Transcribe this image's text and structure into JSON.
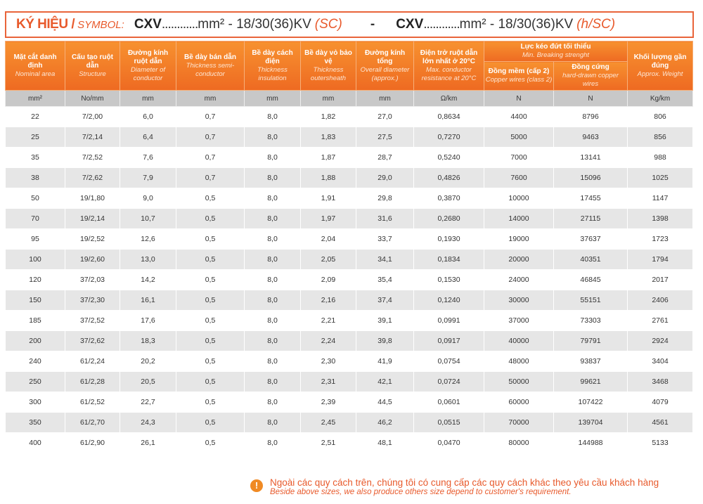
{
  "symbol": {
    "label_vi": "KÝ HIỆU /",
    "label_en": "SYMBOL:",
    "code1": "CXV",
    "dots": "............",
    "spec": "mm² - 18/30(36)KV",
    "suffix1": "(SC)",
    "separator": "-",
    "code2": "CXV",
    "suffix2": "(h/SC)"
  },
  "headers": [
    {
      "vi": "Mặt cắt danh định",
      "en": "Nominal area",
      "unit": "mm²"
    },
    {
      "vi": "Cấu tạo ruột dẫn",
      "en": "Structure",
      "unit": "No/mm"
    },
    {
      "vi": "Đường kính ruột dẫn",
      "en": "Diameter of conductor",
      "unit": "mm"
    },
    {
      "vi": "Bề dày bán dẫn",
      "en": "Thickness semi-conductor",
      "unit": "mm"
    },
    {
      "vi": "Bề dày cách điện",
      "en": "Thickness insulation",
      "unit": "mm"
    },
    {
      "vi": "Bề dày vỏ bảo vệ",
      "en": "Thickness outersheath",
      "unit": "mm"
    },
    {
      "vi": "Đường kính tổng",
      "en": "Overall diameter (approx.)",
      "unit": "mm"
    },
    {
      "vi": "Điện trở ruột dẫn lớn nhất ở 20°C",
      "en": "Max. conductor resistance at 20°C",
      "unit": "Ω/km"
    },
    {
      "vi": "Đồng mềm (cấp 2)",
      "en": "Copper wires (class 2)",
      "unit": "N"
    },
    {
      "vi": "Đồng cứng",
      "en": "hard-drawn copper wires",
      "unit": "N"
    },
    {
      "vi": "Khối lượng gần đúng",
      "en": "Approx. Weight",
      "unit": "Kg/km"
    }
  ],
  "group_header": {
    "vi": "Lực kéo đứt tối thiểu",
    "en": "Min. Breaking strenght"
  },
  "rows": [
    [
      "22",
      "7/2,00",
      "6,0",
      "0,7",
      "8,0",
      "1,82",
      "27,0",
      "0,8634",
      "4400",
      "8796",
      "806"
    ],
    [
      "25",
      "7/2,14",
      "6,4",
      "0,7",
      "8,0",
      "1,83",
      "27,5",
      "0,7270",
      "5000",
      "9463",
      "856"
    ],
    [
      "35",
      "7/2,52",
      "7,6",
      "0,7",
      "8,0",
      "1,87",
      "28,7",
      "0,5240",
      "7000",
      "13141",
      "988"
    ],
    [
      "38",
      "7/2,62",
      "7,9",
      "0,7",
      "8,0",
      "1,88",
      "29,0",
      "0,4826",
      "7600",
      "15096",
      "1025"
    ],
    [
      "50",
      "19/1,80",
      "9,0",
      "0,5",
      "8,0",
      "1,91",
      "29,8",
      "0,3870",
      "10000",
      "17455",
      "1147"
    ],
    [
      "70",
      "19/2,14",
      "10,7",
      "0,5",
      "8,0",
      "1,97",
      "31,6",
      "0,2680",
      "14000",
      "27115",
      "1398"
    ],
    [
      "95",
      "19/2,52",
      "12,6",
      "0,5",
      "8,0",
      "2,04",
      "33,7",
      "0,1930",
      "19000",
      "37637",
      "1723"
    ],
    [
      "100",
      "19/2,60",
      "13,0",
      "0,5",
      "8,0",
      "2,05",
      "34,1",
      "0,1834",
      "20000",
      "40351",
      "1794"
    ],
    [
      "120",
      "37/2,03",
      "14,2",
      "0,5",
      "8,0",
      "2,09",
      "35,4",
      "0,1530",
      "24000",
      "46845",
      "2017"
    ],
    [
      "150",
      "37/2,30",
      "16,1",
      "0,5",
      "8,0",
      "2,16",
      "37,4",
      "0,1240",
      "30000",
      "55151",
      "2406"
    ],
    [
      "185",
      "37/2,52",
      "17,6",
      "0,5",
      "8,0",
      "2,21",
      "39,1",
      "0,0991",
      "37000",
      "73303",
      "2761"
    ],
    [
      "200",
      "37/2,62",
      "18,3",
      "0,5",
      "8,0",
      "2,24",
      "39,8",
      "0,0917",
      "40000",
      "79791",
      "2924"
    ],
    [
      "240",
      "61/2,24",
      "20,2",
      "0,5",
      "8,0",
      "2,30",
      "41,9",
      "0,0754",
      "48000",
      "93837",
      "3404"
    ],
    [
      "250",
      "61/2,28",
      "20,5",
      "0,5",
      "8,0",
      "2,31",
      "42,1",
      "0,0724",
      "50000",
      "99621",
      "3468"
    ],
    [
      "300",
      "61/2,52",
      "22,7",
      "0,5",
      "8,0",
      "2,39",
      "44,5",
      "0,0601",
      "60000",
      "107422",
      "4079"
    ],
    [
      "350",
      "61/2,70",
      "24,3",
      "0,5",
      "8,0",
      "2,45",
      "46,2",
      "0,0515",
      "70000",
      "139704",
      "4561"
    ],
    [
      "400",
      "61/2,90",
      "26,1",
      "0,5",
      "8,0",
      "2,51",
      "48,1",
      "0,0470",
      "80000",
      "144988",
      "5133"
    ]
  ],
  "note": {
    "icon": "exclamation-icon",
    "vi": "Ngoài các quy cách trên, chúng tôi có cung cấp các quy cách khác theo yêu cầu khách hàng",
    "en": "Beside above sizes, we also produce others size depend to customer's requirement."
  }
}
